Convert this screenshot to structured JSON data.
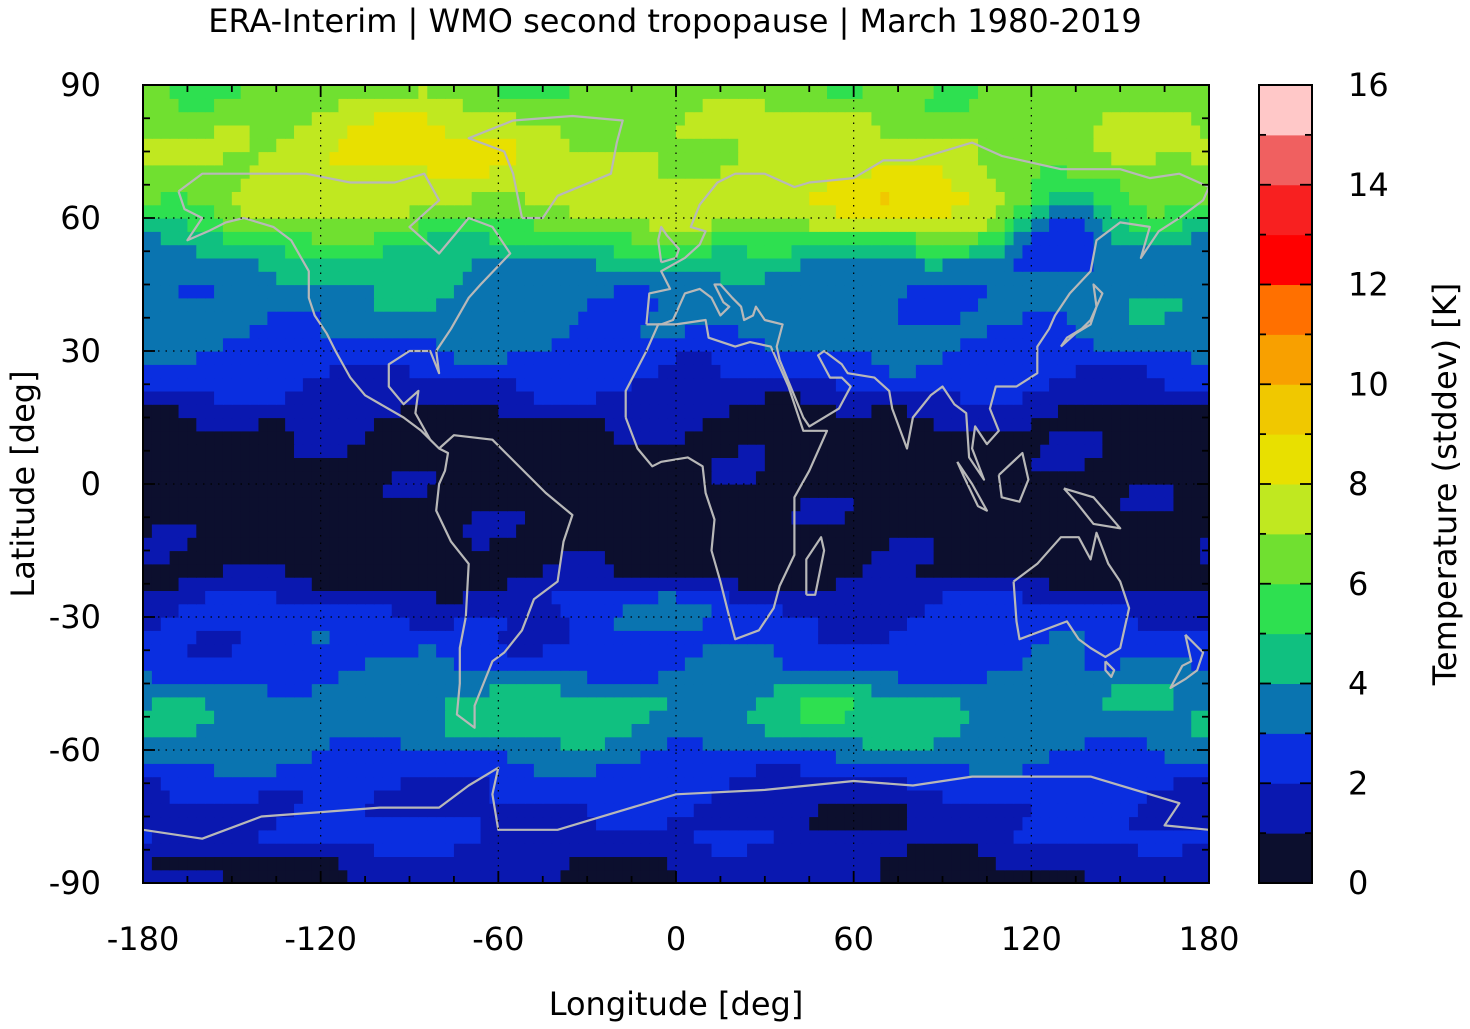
{
  "chart_data": {
    "type": "heatmap",
    "title": "ERA-Interim | WMO second tropopause | March 1980-2019",
    "xlabel": "Longitude [deg]",
    "ylabel": "Latitude [deg]",
    "colorbar_label": "Temperature (stddev) [K]",
    "xlim": [
      -180,
      180
    ],
    "ylim": [
      -90,
      90
    ],
    "x_ticks": [
      -180,
      -120,
      -60,
      0,
      60,
      120,
      180
    ],
    "y_ticks": [
      90,
      60,
      30,
      0,
      -30,
      -60,
      -90
    ],
    "colorbar_range": [
      0,
      16
    ],
    "colorbar_ticks": [
      0,
      2,
      4,
      6,
      8,
      10,
      12,
      14,
      16
    ],
    "colorbar_step": 1,
    "colormap": [
      "#0c0f2e",
      "#0a18b0",
      "#0a2ee0",
      "#0a74b0",
      "#10c080",
      "#2ee050",
      "#70e030",
      "#c0e820",
      "#e8e000",
      "#f0c800",
      "#f8a000",
      "#ff7000",
      "#ff0000",
      "#f82020",
      "#f06060",
      "#ffc8c8"
    ],
    "grid": true,
    "coastlines": true,
    "zonal_mean_profile": [
      {
        "lat": -90,
        "value": 1.0
      },
      {
        "lat": -85,
        "value": 1.2
      },
      {
        "lat": -80,
        "value": 2.2
      },
      {
        "lat": -75,
        "value": 2.3
      },
      {
        "lat": -70,
        "value": 2.4
      },
      {
        "lat": -65,
        "value": 2.6
      },
      {
        "lat": -60,
        "value": 3.3
      },
      {
        "lat": -55,
        "value": 3.7
      },
      {
        "lat": -50,
        "value": 3.8
      },
      {
        "lat": -45,
        "value": 3.4
      },
      {
        "lat": -40,
        "value": 2.7
      },
      {
        "lat": -35,
        "value": 2.4
      },
      {
        "lat": -30,
        "value": 2.2
      },
      {
        "lat": -25,
        "value": 1.6
      },
      {
        "lat": -20,
        "value": 0.6
      },
      {
        "lat": -15,
        "value": 0.5
      },
      {
        "lat": -10,
        "value": 0.5
      },
      {
        "lat": -5,
        "value": 0.5
      },
      {
        "lat": 0,
        "value": 0.5
      },
      {
        "lat": 5,
        "value": 0.5
      },
      {
        "lat": 10,
        "value": 0.6
      },
      {
        "lat": 15,
        "value": 0.9
      },
      {
        "lat": 20,
        "value": 1.7
      },
      {
        "lat": 25,
        "value": 2.3
      },
      {
        "lat": 30,
        "value": 2.8
      },
      {
        "lat": 35,
        "value": 3.4
      },
      {
        "lat": 40,
        "value": 3.6
      },
      {
        "lat": 45,
        "value": 3.8
      },
      {
        "lat": 50,
        "value": 4.3
      },
      {
        "lat": 55,
        "value": 5.6
      },
      {
        "lat": 60,
        "value": 7.0
      },
      {
        "lat": 65,
        "value": 7.7
      },
      {
        "lat": 70,
        "value": 7.3
      },
      {
        "lat": 75,
        "value": 7.2
      },
      {
        "lat": 80,
        "value": 7.0
      },
      {
        "lat": 85,
        "value": 6.6
      },
      {
        "lat": 90,
        "value": 6.2
      }
    ]
  }
}
